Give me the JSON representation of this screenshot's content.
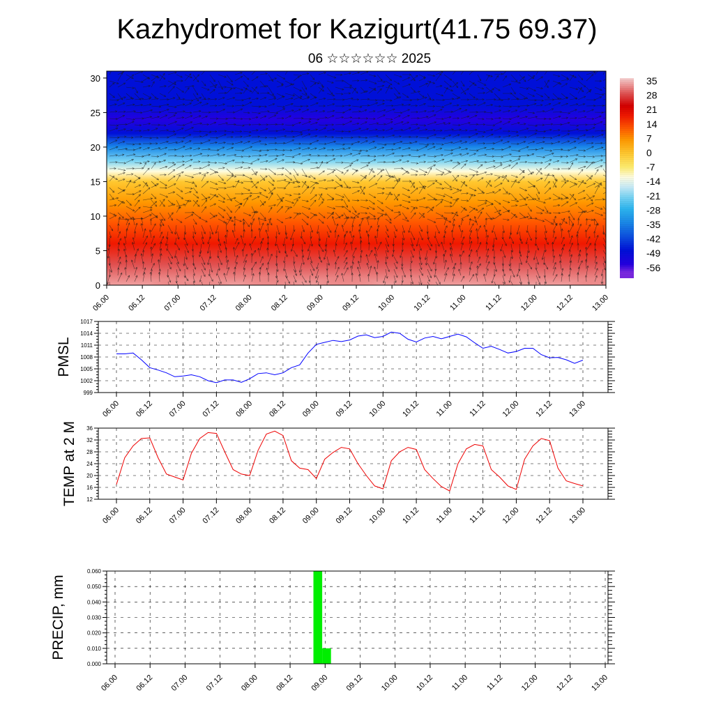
{
  "page": {
    "title": "Kazhydromet for Kazigurt(41.75 69.37)",
    "subtitle": "06 ☆☆☆☆☆☆ 2025"
  },
  "chart_data": [
    {
      "type": "heatmap",
      "name": "temperature-wind-cross-section",
      "x_tick_labels": [
        "06.00",
        "06.12",
        "07.00",
        "07.12",
        "08.00",
        "08.12",
        "09.00",
        "09.12",
        "10.00",
        "10.12",
        "11.00",
        "11.12",
        "12.00",
        "12.12",
        "13.00"
      ],
      "y_ticks": [
        0,
        5,
        10,
        15,
        20,
        25,
        30
      ],
      "ylim": [
        0,
        31
      ],
      "temperature_by_level": [
        {
          "level": 0,
          "value": 33
        },
        {
          "level": 3,
          "value": 28
        },
        {
          "level": 6,
          "value": 21
        },
        {
          "level": 9,
          "value": 14
        },
        {
          "level": 12,
          "value": 5
        },
        {
          "level": 15,
          "value": -3
        },
        {
          "level": 16.5,
          "value": -10
        },
        {
          "level": 18,
          "value": -21
        },
        {
          "level": 20,
          "value": -35
        },
        {
          "level": 22,
          "value": -48
        },
        {
          "level": 24,
          "value": -56
        },
        {
          "level": 26,
          "value": -52
        },
        {
          "level": 28,
          "value": -50
        },
        {
          "level": 31,
          "value": -49
        }
      ],
      "colorbar": {
        "labels": [
          "35",
          "28",
          "21",
          "14",
          "7",
          "0",
          "-7",
          "-14",
          "-21",
          "-28",
          "-35",
          "-42",
          "-49",
          "-56"
        ],
        "stops": [
          {
            "v": 38,
            "color": "#f4d0d0"
          },
          {
            "v": 35,
            "color": "#f0a0a0"
          },
          {
            "v": 30,
            "color": "#e05050"
          },
          {
            "v": 24,
            "color": "#d40000"
          },
          {
            "v": 19,
            "color": "#f01800"
          },
          {
            "v": 13,
            "color": "#ff5500"
          },
          {
            "v": 7,
            "color": "#ff9800"
          },
          {
            "v": 0,
            "color": "#ffc830"
          },
          {
            "v": -7,
            "color": "#ffee70"
          },
          {
            "v": -12,
            "color": "#fffde0"
          },
          {
            "v": -17,
            "color": "#c8ecf8"
          },
          {
            "v": -22,
            "color": "#7ad4f4"
          },
          {
            "v": -28,
            "color": "#2db6f0"
          },
          {
            "v": -35,
            "color": "#1a88e8"
          },
          {
            "v": -42,
            "color": "#0c50e0"
          },
          {
            "v": -49,
            "color": "#0010d8"
          },
          {
            "v": -56,
            "color": "#2400e0"
          },
          {
            "v": -60,
            "color": "#7a28e0"
          },
          {
            "v": -63,
            "color": "#7a28e0"
          }
        ]
      },
      "wind_vectors": true
    },
    {
      "type": "line",
      "name": "pmsl",
      "ylabel": "PMSL",
      "y_ticks": [
        999,
        1002,
        1005,
        1008,
        1011,
        1014,
        1017
      ],
      "ylim": [
        999,
        1017
      ],
      "x_tick_labels": [
        "06.00",
        "06.12",
        "07.00",
        "07.12",
        "08.00",
        "08.12",
        "09.00",
        "09.12",
        "10.00",
        "10.12",
        "11.00",
        "11.12",
        "12.00",
        "12.12",
        "13.00"
      ],
      "line_color": "#0000ff",
      "x": [
        0,
        3,
        6,
        9,
        12,
        15,
        18,
        21,
        24,
        27,
        30,
        33,
        36,
        39,
        42,
        45,
        48,
        51,
        54,
        57,
        60,
        63,
        66,
        69,
        72,
        75,
        78,
        81,
        84,
        87,
        90,
        93,
        96,
        99,
        102,
        105,
        108,
        111,
        114,
        117,
        120,
        123,
        126,
        129,
        132,
        135,
        138,
        141,
        144,
        147,
        150,
        153,
        156,
        159,
        162,
        165,
        168
      ],
      "values": [
        1008.8,
        1008.8,
        1009.0,
        1007.3,
        1005.3,
        1004.7,
        1004.0,
        1003.0,
        1003.2,
        1003.5,
        1003.0,
        1002.0,
        1001.5,
        1002.2,
        1002.2,
        1001.6,
        1002.5,
        1003.8,
        1004.0,
        1003.5,
        1004.0,
        1005.3,
        1006.0,
        1009.0,
        1011.2,
        1011.7,
        1012.2,
        1011.9,
        1012.3,
        1013.3,
        1013.6,
        1012.9,
        1013.2,
        1014.3,
        1014.0,
        1012.5,
        1011.8,
        1012.8,
        1013.2,
        1012.6,
        1013.2,
        1013.8,
        1013.1,
        1011.6,
        1010.2,
        1010.7,
        1009.9,
        1009.0,
        1009.4,
        1010.2,
        1010.2,
        1008.6,
        1007.8,
        1007.9,
        1007.3,
        1006.4,
        1007.2
      ]
    },
    {
      "type": "line",
      "name": "temp-2m",
      "ylabel": "TEMP at 2 M",
      "y_ticks": [
        12,
        16,
        20,
        24,
        28,
        32,
        36
      ],
      "ylim": [
        12,
        36
      ],
      "x_tick_labels": [
        "06.00",
        "06.12",
        "07.00",
        "07.12",
        "08.00",
        "08.12",
        "09.00",
        "09.12",
        "10.00",
        "10.12",
        "11.00",
        "11.12",
        "12.00",
        "12.12",
        "13.00"
      ],
      "line_color": "#ee0000",
      "x": [
        0,
        3,
        6,
        9,
        12,
        15,
        18,
        21,
        24,
        27,
        30,
        33,
        36,
        39,
        42,
        45,
        48,
        51,
        54,
        57,
        60,
        63,
        66,
        69,
        72,
        75,
        78,
        81,
        84,
        87,
        90,
        93,
        96,
        99,
        102,
        105,
        108,
        111,
        114,
        117,
        120,
        123,
        126,
        129,
        132,
        135,
        138,
        141,
        144,
        147,
        150,
        153,
        156,
        159,
        162,
        165,
        168
      ],
      "values": [
        17.0,
        26.0,
        30.0,
        32.5,
        32.7,
        26.0,
        20.5,
        19.5,
        18.5,
        27.5,
        32.5,
        34.5,
        34.2,
        28.0,
        22.0,
        20.5,
        20.0,
        28.5,
        34.0,
        35.0,
        33.5,
        25.0,
        22.5,
        22.0,
        19.0,
        25.5,
        27.8,
        29.5,
        29.0,
        24.0,
        20.0,
        16.5,
        15.5,
        25.0,
        28.0,
        29.5,
        28.8,
        22.0,
        19.0,
        16.3,
        14.8,
        24.0,
        29.0,
        30.5,
        30.0,
        22.0,
        19.5,
        16.5,
        15.3,
        25.5,
        30.0,
        32.5,
        31.8,
        22.5,
        18.2,
        17.3,
        16.5
      ]
    },
    {
      "type": "bar",
      "name": "precipitation",
      "ylabel": "PRECIP, mm",
      "y_ticks": [
        "0.000",
        "0.010",
        "0.020",
        "0.030",
        "0.040",
        "0.050",
        "0.060"
      ],
      "ylim": [
        0,
        0.06
      ],
      "x_tick_labels": [
        "06.00",
        "06.12",
        "07.00",
        "07.12",
        "08.00",
        "08.12",
        "09.00",
        "09.12",
        "10.00",
        "10.12",
        "11.00",
        "11.12",
        "12.00",
        "12.12",
        "13.00"
      ],
      "bar_color": "#00ee00",
      "bars": [
        {
          "x_start": 68,
          "x_end": 71,
          "value": 0.06
        },
        {
          "x_start": 71,
          "x_end": 74,
          "value": 0.01
        }
      ]
    }
  ]
}
